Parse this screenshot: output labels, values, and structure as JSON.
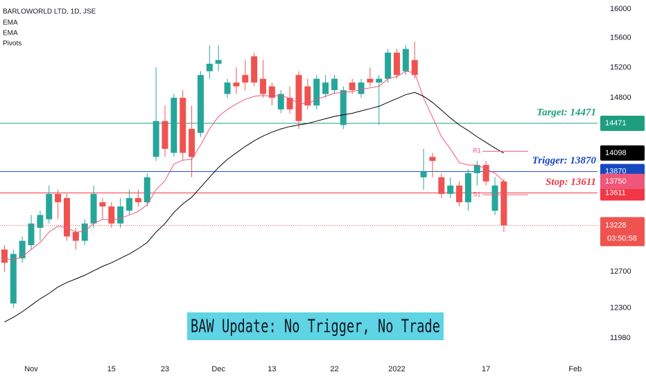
{
  "chart_data": {
    "type": "candlestick",
    "title": "BARLOWORLD LTD, 1D, JSE",
    "log_scale": true,
    "up_color": "#26a69a",
    "down_color": "#ef5350",
    "categories": [
      null,
      null,
      null,
      "Nov",
      null,
      null,
      null,
      null,
      null,
      null,
      null,
      null,
      "15",
      null,
      null,
      null,
      null,
      null,
      "23",
      null,
      null,
      null,
      null,
      null,
      "Dec",
      null,
      null,
      null,
      null,
      null,
      "13",
      null,
      null,
      null,
      null,
      null,
      null,
      "22",
      null,
      null,
      null,
      null,
      null,
      null,
      "2022",
      null,
      null,
      null,
      null,
      null,
      null,
      null,
      null,
      null,
      "17",
      null,
      null,
      null,
      null,
      null,
      null,
      null,
      null,
      null,
      "Feb",
      null,
      null
    ],
    "open": [
      12950,
      12350,
      12850,
      13000,
      13200,
      13300,
      13600,
      13550,
      13150,
      13050,
      13250,
      13500,
      13450,
      13250,
      13400,
      13550,
      13500,
      14050,
      14500,
      14100,
      14800,
      14400,
      14350,
      15150,
      15250,
      14850,
      15000,
      15100,
      15350,
      15050,
      14950,
      14650,
      14800,
      15100,
      14950,
      14700,
      14850,
      14900,
      14450,
      15000,
      14850,
      15050,
      15000,
      15050,
      15400,
      15150,
      15300,
      13800,
      14050,
      13800,
      13600,
      13700,
      13500,
      13850,
      13950,
      13400,
      13750,
      null,
      null,
      null,
      null,
      null,
      null,
      null,
      null,
      null,
      null
    ],
    "high": [
      13000,
      12950,
      13100,
      13350,
      13400,
      13700,
      13650,
      13600,
      13200,
      13300,
      13700,
      13550,
      13500,
      13550,
      13650,
      13650,
      13850,
      15200,
      14700,
      14850,
      14900,
      14700,
      15150,
      15500,
      15500,
      15050,
      15200,
      15300,
      15400,
      15300,
      15000,
      14900,
      14950,
      15150,
      15050,
      15100,
      15100,
      15100,
      14950,
      15050,
      15050,
      15200,
      15100,
      15450,
      15450,
      15500,
      15550,
      14150,
      14100,
      13850,
      13800,
      13750,
      13900,
      14000,
      14000,
      13800,
      13780,
      null,
      null,
      null,
      null,
      null,
      null,
      null,
      null,
      null,
      null
    ],
    "low": [
      12700,
      12300,
      12800,
      12950,
      13050,
      13250,
      13300,
      13050,
      12950,
      13000,
      13200,
      13300,
      13200,
      13200,
      13350,
      13450,
      13450,
      14000,
      14050,
      14050,
      14000,
      13800,
      14300,
      15050,
      15150,
      14800,
      14850,
      14900,
      14950,
      14800,
      14700,
      14600,
      14600,
      14400,
      14650,
      14650,
      14800,
      14850,
      14400,
      14850,
      14800,
      14950,
      14450,
      15000,
      15050,
      15100,
      15050,
      13650,
      13800,
      13550,
      13550,
      13450,
      13400,
      13700,
      13700,
      13350,
      13150,
      null,
      null,
      null,
      null,
      null,
      null,
      null,
      null,
      null,
      null
    ],
    "close": [
      12800,
      12900,
      13050,
      13250,
      13350,
      13600,
      13500,
      13100,
      13050,
      13250,
      13600,
      13450,
      13250,
      13450,
      13550,
      13500,
      13800,
      14500,
      14150,
      14800,
      14100,
      14050,
      15100,
      15250,
      15300,
      15000,
      14950,
      15000,
      15000,
      14850,
      14800,
      14850,
      14650,
      14500,
      14700,
      15050,
      15000,
      15050,
      14900,
      14900,
      15000,
      15000,
      15050,
      15400,
      15100,
      15450,
      15100,
      13870,
      14000,
      13600,
      13700,
      13500,
      13850,
      13950,
      13750,
      13700,
      13228,
      null,
      null,
      null,
      null,
      null,
      null,
      null,
      null,
      null,
      null
    ],
    "series": [
      {
        "name": "EMA",
        "color": "#f0567a",
        "values": [
          12850,
          12830,
          12870,
          12950,
          13030,
          13150,
          13220,
          13200,
          13150,
          13160,
          13250,
          13300,
          13290,
          13310,
          13350,
          13390,
          13470,
          13650,
          13760,
          13960,
          14010,
          14020,
          14200,
          14400,
          14560,
          14650,
          14720,
          14780,
          14820,
          14830,
          14820,
          14830,
          14790,
          14730,
          14720,
          14780,
          14820,
          14860,
          14870,
          14880,
          14910,
          14930,
          14950,
          15050,
          15080,
          15150,
          15130,
          14800,
          14550,
          14300,
          14150,
          13980,
          13950,
          13950,
          13900,
          13850,
          13750,
          null,
          null,
          null,
          null,
          null,
          null,
          null,
          null,
          null,
          null
        ]
      },
      {
        "name": "EMA",
        "color": "#000000",
        "values": [
          12150,
          12200,
          12260,
          12330,
          12400,
          12460,
          12530,
          12580,
          12620,
          12660,
          12710,
          12760,
          12800,
          12850,
          12900,
          12960,
          13030,
          13150,
          13250,
          13380,
          13480,
          13560,
          13680,
          13800,
          13920,
          14020,
          14100,
          14180,
          14250,
          14310,
          14360,
          14400,
          14430,
          14450,
          14470,
          14500,
          14530,
          14560,
          14580,
          14600,
          14630,
          14660,
          14690,
          14740,
          14790,
          14840,
          14870,
          14820,
          14740,
          14640,
          14540,
          14450,
          14380,
          14300,
          14230,
          14160,
          14098,
          null,
          null,
          null,
          null,
          null,
          null,
          null,
          null,
          null,
          null
        ]
      }
    ],
    "pivots": {
      "name": "Pivots",
      "levels": [
        {
          "label": "R1",
          "value": 14120
        },
        {
          "label": "S1",
          "value": 13590
        }
      ]
    },
    "price_lines": [
      {
        "label": "Target: 14471",
        "value": 14471,
        "color": "#1e9e7e"
      },
      {
        "label": "Trigger: 13870",
        "value": 13870,
        "color": "#1848c0"
      },
      {
        "label": "Stop: 13611",
        "value": 13611,
        "color": "#f23645"
      }
    ],
    "countdown": "03:50:58",
    "annotation": "BAW Update: No Trigger, No Trade",
    "ylim": [
      11820,
      16130
    ],
    "yticks": [
      16000,
      15600,
      15200,
      14800,
      12700,
      12300,
      11980
    ]
  }
}
